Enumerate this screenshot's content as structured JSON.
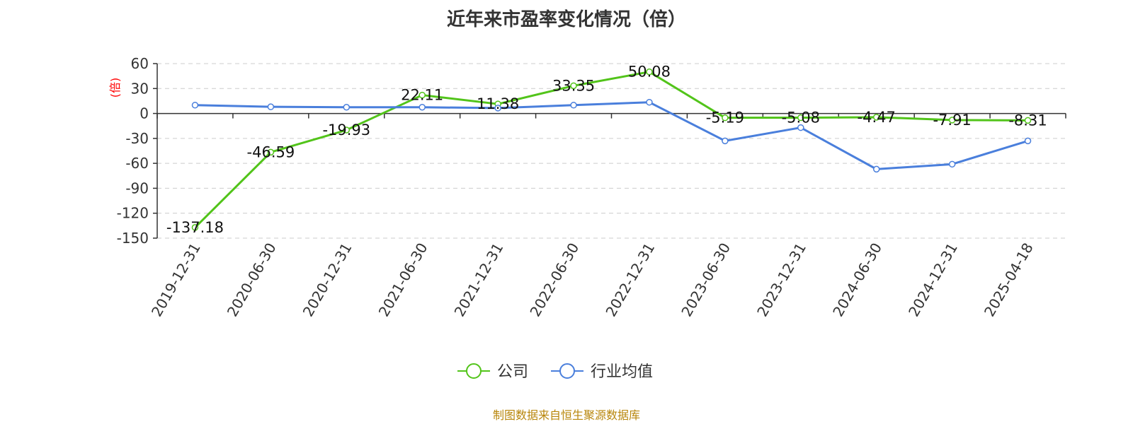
{
  "chart_data": {
    "type": "line",
    "title": "近年来市盈率变化情况（倍）",
    "unit": "(倍)",
    "source": "制图数据来自恒生聚源数据库",
    "categories": [
      "2019-12-31",
      "2020-06-30",
      "2020-12-31",
      "2021-06-30",
      "2021-12-31",
      "2022-06-30",
      "2022-12-31",
      "2023-06-30",
      "2023-12-31",
      "2024-06-30",
      "2024-12-31",
      "2025-04-18"
    ],
    "ylim": [
      -150,
      60
    ],
    "yticks": [
      60,
      30,
      0,
      -30,
      -60,
      -90,
      -120,
      -150
    ],
    "series": [
      {
        "name": "公司",
        "color": "#52c41a",
        "values": [
          -137.18,
          -46.59,
          -19.93,
          22.11,
          11.38,
          33.35,
          50.08,
          -5.19,
          -5.08,
          -4.47,
          -7.91,
          -8.31
        ],
        "labels": [
          "-137.18",
          "-46.59",
          "-19.93",
          "22.11",
          "11.38",
          "33.35",
          "50.08",
          "-5.19",
          "-5.08",
          "-4.47",
          "-7.91",
          "-8.31"
        ]
      },
      {
        "name": "行业均值",
        "color": "#4a7fdc",
        "values": [
          10,
          8,
          7.5,
          7.5,
          6.5,
          10,
          13.5,
          -33,
          -17,
          -67,
          -61,
          -33
        ]
      }
    ],
    "grid": true,
    "legend_position": "bottom-center"
  }
}
